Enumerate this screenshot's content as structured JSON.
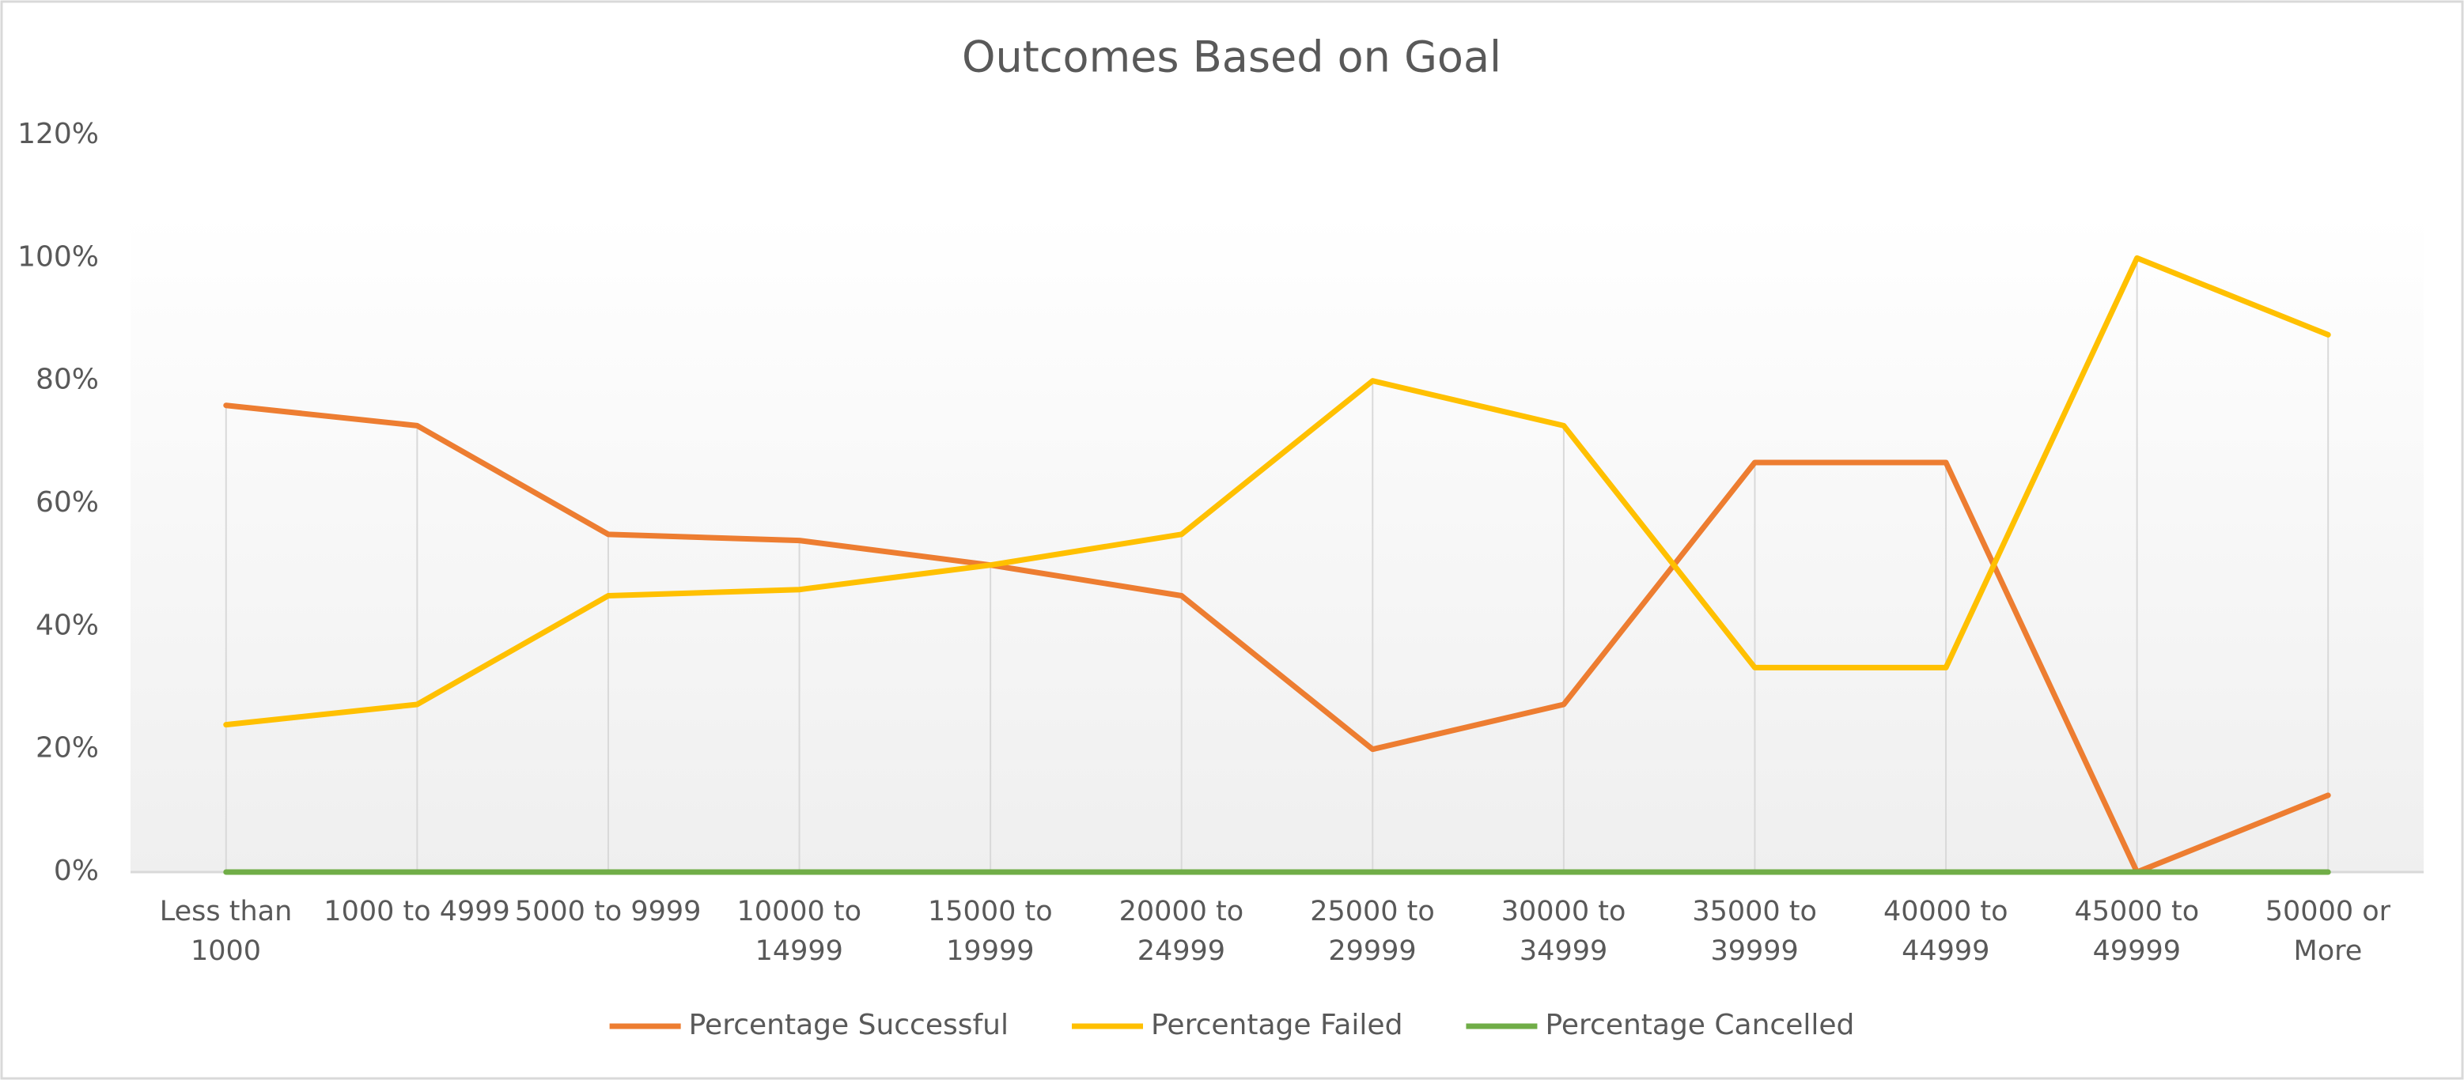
{
  "chart_data": {
    "type": "line",
    "title": "Outcomes Based on Goal",
    "categories": [
      "Less than 1000",
      "1000 to 4999",
      "5000 to 9999",
      "10000 to 14999",
      "15000 to 19999",
      "20000 to 24999",
      "25000 to 29999",
      "30000 to 34999",
      "35000 to 39999",
      "40000 to 44999",
      "45000 to 49999",
      "50000 or More"
    ],
    "series": [
      {
        "name": "Percentage Successful",
        "color": "#ed7d31",
        "values": [
          76,
          72.7,
          55,
          54,
          50,
          45,
          20,
          27.3,
          66.7,
          66.7,
          0,
          12.5
        ]
      },
      {
        "name": "Percentage Failed",
        "color": "#ffc000",
        "values": [
          24,
          27.3,
          45,
          46,
          50,
          55,
          80,
          72.7,
          33.3,
          33.3,
          100,
          87.5
        ]
      },
      {
        "name": "Percentage Cancelled",
        "color": "#70ad47",
        "values": [
          0,
          0,
          0,
          0,
          0,
          0,
          0,
          0,
          0,
          0,
          0,
          0
        ]
      }
    ],
    "ylim": [
      0,
      120
    ],
    "yticks": [
      {
        "value": 0,
        "label": "0%"
      },
      {
        "value": 20,
        "label": "20%"
      },
      {
        "value": 40,
        "label": "40%"
      },
      {
        "value": 60,
        "label": "60%"
      },
      {
        "value": 80,
        "label": "80%"
      },
      {
        "value": 100,
        "label": "100%"
      },
      {
        "value": 120,
        "label": "120%"
      }
    ],
    "legend": "bottom"
  }
}
